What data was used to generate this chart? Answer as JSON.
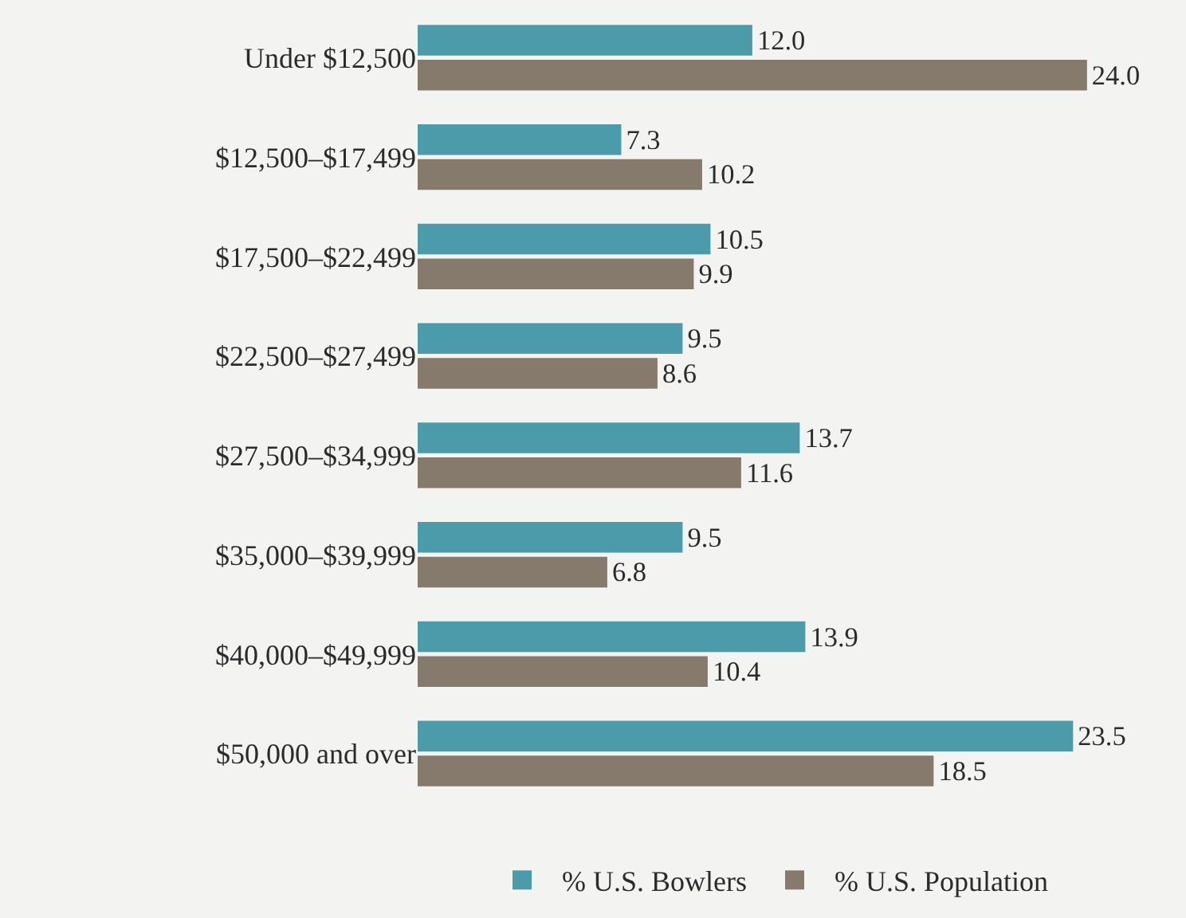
{
  "chart_data": {
    "type": "bar",
    "orientation": "horizontal",
    "categories": [
      "Under $12,500",
      "$12,500–$17,499",
      "$17,500–$22,499",
      "$22,500–$27,499",
      "$27,500–$34,999",
      "$35,000–$39,999",
      "$40,000–$49,999",
      "$50,000 and over"
    ],
    "series": [
      {
        "name": "% U.S. Bowlers",
        "color": "#4c9bab",
        "values": [
          12.0,
          7.3,
          10.5,
          9.5,
          13.7,
          9.5,
          13.9,
          23.5
        ],
        "value_labels": [
          "12.0",
          "7.3",
          "10.5",
          "9.5",
          "13.7",
          "9.5",
          "13.9",
          "23.5"
        ]
      },
      {
        "name": "% U.S. Population",
        "color": "#857a6b",
        "values": [
          24.0,
          10.2,
          9.9,
          8.6,
          11.6,
          6.8,
          10.4,
          18.5
        ],
        "value_labels": [
          "24.0",
          "10.2",
          "9.9",
          "8.6",
          "11.6",
          "6.8",
          "10.4",
          "18.5"
        ]
      }
    ],
    "grid": false,
    "legend": "bottom",
    "tick_labels": "y"
  }
}
